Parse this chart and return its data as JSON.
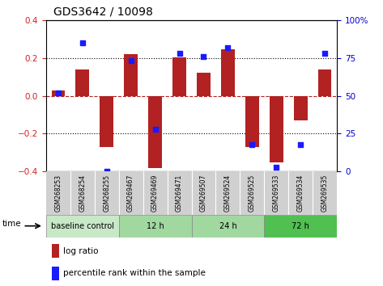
{
  "title": "GDS3642 / 10098",
  "samples": [
    "GSM268253",
    "GSM268254",
    "GSM268255",
    "GSM269467",
    "GSM269469",
    "GSM269471",
    "GSM269507",
    "GSM269524",
    "GSM269525",
    "GSM269533",
    "GSM269534",
    "GSM269535"
  ],
  "log_ratio": [
    0.03,
    0.14,
    -0.27,
    0.22,
    -0.38,
    0.205,
    0.12,
    0.245,
    -0.27,
    -0.35,
    -0.13,
    0.14
  ],
  "percentile_rank": [
    52,
    85,
    0,
    73,
    28,
    78,
    76,
    82,
    18,
    3,
    18,
    78
  ],
  "bar_color": "#b22222",
  "dot_color": "#1a1aff",
  "ylim_left": [
    -0.4,
    0.4
  ],
  "ylim_right": [
    0,
    100
  ],
  "yticks_left": [
    -0.4,
    -0.2,
    0.0,
    0.2,
    0.4
  ],
  "yticks_right": [
    0,
    25,
    50,
    75,
    100
  ],
  "hline_dotted": [
    0.2,
    -0.2
  ],
  "hline_red_dashed": 0.0,
  "groups": [
    {
      "label": "baseline control",
      "start": 0,
      "end": 3
    },
    {
      "label": "12 h",
      "start": 3,
      "end": 6
    },
    {
      "label": "24 h",
      "start": 6,
      "end": 9
    },
    {
      "label": "72 h",
      "start": 9,
      "end": 12
    }
  ],
  "group_colors": [
    "#c8e8c8",
    "#a0d8a0",
    "#a0d8a0",
    "#50c050"
  ],
  "legend_bar_label": "log ratio",
  "legend_dot_label": "percentile rank within the sample",
  "xlabel_time": "time",
  "background_plot": "#ffffff",
  "tick_label_color_left": "#cc2222",
  "tick_label_color_right": "#0000cc",
  "sample_box_color": "#d0d0d0",
  "fig_bg": "#ffffff"
}
